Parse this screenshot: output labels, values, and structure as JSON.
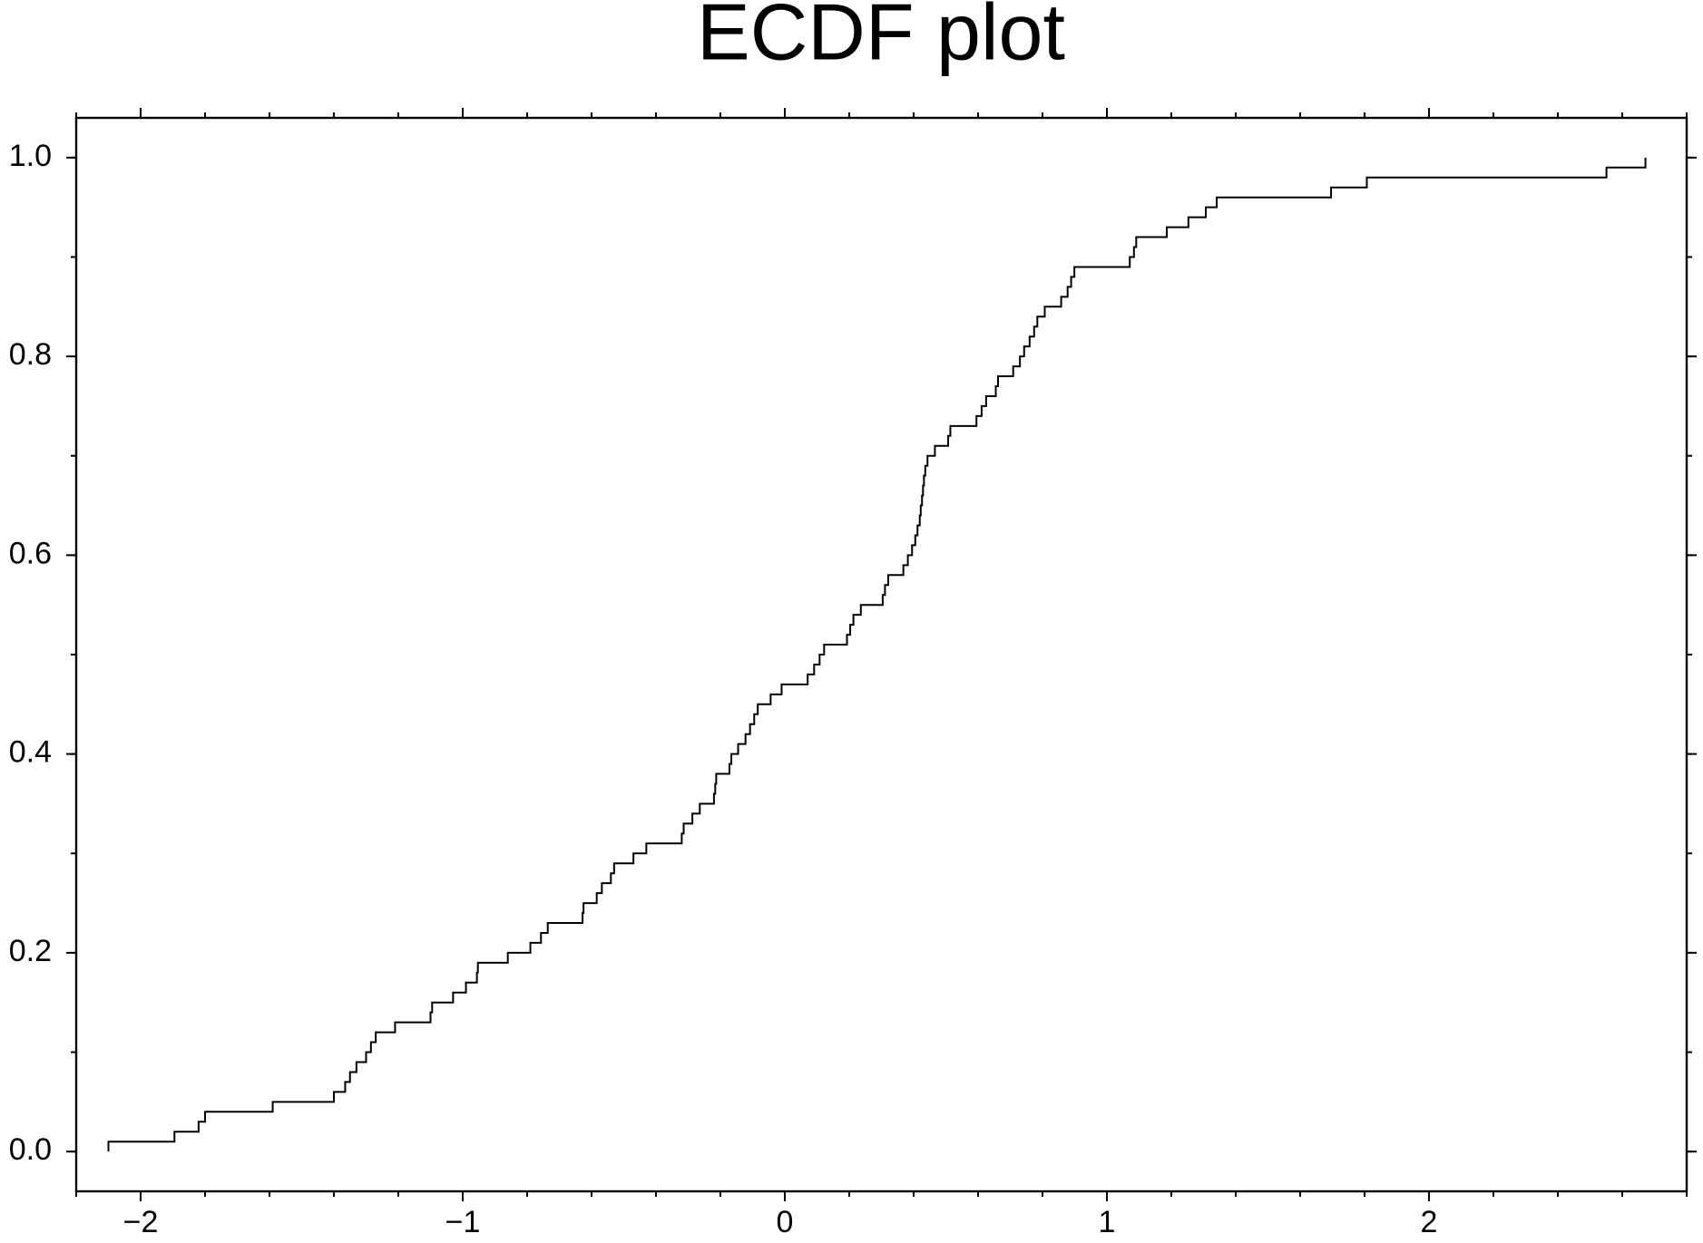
{
  "chart_data": {
    "type": "step",
    "title": "ECDF plot",
    "xlim": [
      -2.2,
      2.8
    ],
    "ylim": [
      -0.04,
      1.04
    ],
    "xticks": [
      {
        "value": -2,
        "label": "−2"
      },
      {
        "value": -1,
        "label": "−1"
      },
      0,
      1,
      2
    ],
    "yticks": [
      {
        "value": 0,
        "label": "0.0"
      },
      0.2,
      0.4,
      0.6,
      0.8,
      {
        "value": 1,
        "label": "1.0"
      }
    ],
    "series": [
      {
        "color": "#000000",
        "x": [
          -2.1,
          -1.895,
          -1.82,
          -1.8,
          -1.59,
          -1.4,
          -1.365,
          -1.35,
          -1.33,
          -1.3,
          -1.285,
          -1.27,
          -1.21,
          -1.1,
          -1.095,
          -1.03,
          -0.99,
          -0.956,
          -0.953,
          -0.86,
          -0.79,
          -0.757,
          -0.736,
          -0.628,
          -0.625,
          -0.584,
          -0.568,
          -0.54,
          -0.53,
          -0.47,
          -0.43,
          -0.32,
          -0.314,
          -0.287,
          -0.264,
          -0.22,
          -0.216,
          -0.213,
          -0.172,
          -0.166,
          -0.145,
          -0.122,
          -0.108,
          -0.095,
          -0.084,
          -0.044,
          -0.01,
          0.071,
          0.091,
          0.108,
          0.122,
          0.193,
          0.203,
          0.213,
          0.236,
          0.304,
          0.311,
          0.321,
          0.368,
          0.382,
          0.395,
          0.405,
          0.412,
          0.419,
          0.422,
          0.426,
          0.429,
          0.432,
          0.436,
          0.443,
          0.466,
          0.507,
          0.514,
          0.595,
          0.611,
          0.625,
          0.655,
          0.662,
          0.709,
          0.73,
          0.743,
          0.76,
          0.774,
          0.784,
          0.807,
          0.858,
          0.878,
          0.889,
          0.899,
          1.071,
          1.084,
          1.091,
          1.186,
          1.253,
          1.307,
          1.341,
          1.696,
          1.807,
          2.551,
          2.672
        ],
        "values": [
          0.01,
          0.02,
          0.03,
          0.04,
          0.05,
          0.06,
          0.07,
          0.08,
          0.09,
          0.1,
          0.11,
          0.12,
          0.13,
          0.14,
          0.15,
          0.16,
          0.17,
          0.18,
          0.19,
          0.2,
          0.21,
          0.22,
          0.23,
          0.24,
          0.25,
          0.26,
          0.27,
          0.28,
          0.29,
          0.3,
          0.31,
          0.32,
          0.33,
          0.34,
          0.35,
          0.36,
          0.37,
          0.38,
          0.39,
          0.4,
          0.41,
          0.42,
          0.43,
          0.44,
          0.45,
          0.46,
          0.47,
          0.48,
          0.49,
          0.5,
          0.51,
          0.52,
          0.53,
          0.54,
          0.55,
          0.56,
          0.57,
          0.58,
          0.59,
          0.6,
          0.61,
          0.62,
          0.63,
          0.64,
          0.65,
          0.66,
          0.67,
          0.68,
          0.69,
          0.7,
          0.71,
          0.72,
          0.73,
          0.74,
          0.75,
          0.76,
          0.77,
          0.78,
          0.79,
          0.8,
          0.81,
          0.82,
          0.83,
          0.84,
          0.85,
          0.86,
          0.87,
          0.88,
          0.89,
          0.9,
          0.91,
          0.92,
          0.93,
          0.94,
          0.95,
          0.96,
          0.97,
          0.98,
          0.99,
          1.0
        ]
      }
    ]
  }
}
